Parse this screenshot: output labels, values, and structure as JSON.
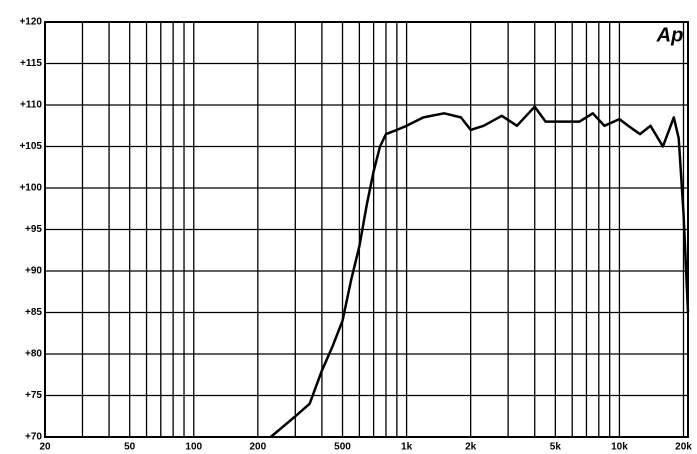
{
  "chart_data": {
    "type": "line",
    "logo": "Ap",
    "xscale": "log",
    "grid": true,
    "color": "#000000",
    "xlim": [
      20,
      21000
    ],
    "ylim": [
      70,
      120
    ],
    "xticks": [
      20,
      50,
      100,
      200,
      500,
      {
        "value": 1000,
        "label": "1k"
      },
      {
        "value": 2000,
        "label": "2k"
      },
      {
        "value": 5000,
        "label": "5k"
      },
      {
        "value": 10000,
        "label": "10k"
      },
      {
        "value": 20000,
        "label": "20k"
      }
    ],
    "xgrid_minor": [
      30,
      40,
      60,
      70,
      80,
      90,
      300,
      400,
      600,
      700,
      800,
      900,
      3000,
      4000,
      6000,
      7000,
      8000,
      9000
    ],
    "yticks": [
      {
        "value": 70,
        "label": "+70"
      },
      {
        "value": 75,
        "label": "+75"
      },
      {
        "value": 80,
        "label": "+80"
      },
      {
        "value": 85,
        "label": "+85"
      },
      {
        "value": 90,
        "label": "+90"
      },
      {
        "value": 95,
        "label": "+95"
      },
      {
        "value": 100,
        "label": "+100"
      },
      {
        "value": 105,
        "label": "+105"
      },
      {
        "value": 110,
        "label": "+110"
      },
      {
        "value": 115,
        "label": "+115"
      },
      {
        "value": 120,
        "label": "+120"
      }
    ],
    "x": [
      230,
      300,
      350,
      400,
      450,
      500,
      550,
      600,
      650,
      700,
      750,
      800,
      900,
      1000,
      1200,
      1500,
      1800,
      2000,
      2300,
      2800,
      3300,
      4000,
      4500,
      5500,
      6500,
      7500,
      8500,
      10000,
      11000,
      12500,
      14000,
      16000,
      18000,
      19000,
      20000,
      21000
    ],
    "values": [
      70,
      72.5,
      74,
      78,
      81,
      84,
      89,
      93,
      98,
      102,
      105,
      106.5,
      107,
      107.5,
      108.5,
      109,
      108.5,
      107,
      107.5,
      108.7,
      107.5,
      109.8,
      108,
      108,
      108,
      109,
      107.5,
      108.3,
      107.5,
      106.5,
      107.5,
      105,
      108.5,
      106,
      97,
      85
    ]
  }
}
